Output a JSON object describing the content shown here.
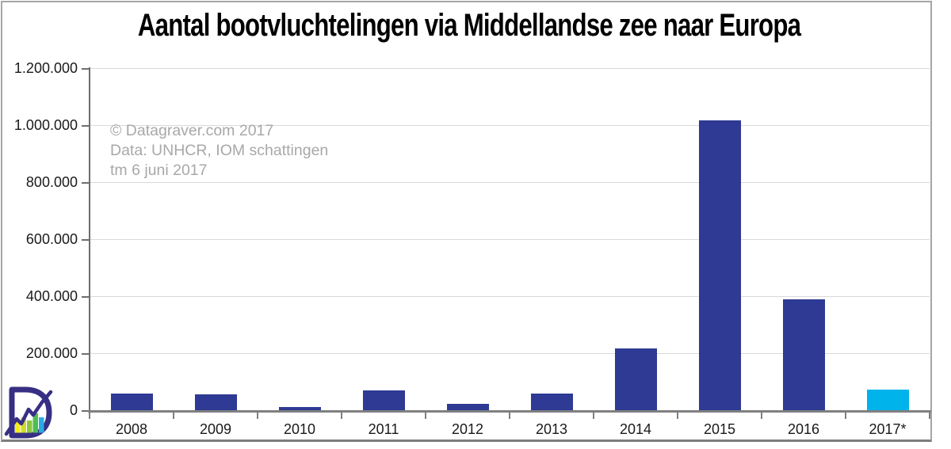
{
  "title": "Aantal bootvluchtelingen via Middellandse zee naar Europa",
  "watermark": {
    "line1": "© Datagraver.com 2017",
    "line2": "Data: UNHCR, IOM schattingen",
    "line3": "tm 6 juni 2017"
  },
  "chart_data": {
    "type": "bar",
    "categories": [
      "2008",
      "2009",
      "2010",
      "2011",
      "2012",
      "2013",
      "2014",
      "2015",
      "2016",
      "2017*"
    ],
    "values": [
      59000,
      56000,
      10000,
      70000,
      22000,
      59000,
      216000,
      1015000,
      388000,
      71000
    ],
    "title": "Aantal bootvluchtelingen via Middellandse zee naar Europa",
    "xlabel": "",
    "ylabel": "",
    "ylim": [
      0,
      1200000
    ],
    "ytick_interval": 200000,
    "ytick_labels": [
      "0",
      "200.000",
      "400.000",
      "600.000",
      "800.000",
      "1.000.000",
      "1.200.000"
    ],
    "grid": true,
    "legend": false,
    "bar_color": "#2e3a93",
    "highlight_color": "#00b3ea",
    "highlight_index": 9
  },
  "colors": {
    "bar_navy": "#2e3a93",
    "bar_cyan": "#00b3ea",
    "gridline": "#d9d9d9",
    "axis_gray": "#808080",
    "watermark_gray": "#a8a8a8",
    "logo_purple": "#372f84",
    "logo_yellow": "#f5ec1e",
    "logo_yellowgreen": "#cedc2b",
    "logo_green": "#8cc63f",
    "logo_lightgreen": "#4fbd4f",
    "logo_skyblue": "#29abe2"
  },
  "logo": {
    "name": "Datagraver logo"
  }
}
